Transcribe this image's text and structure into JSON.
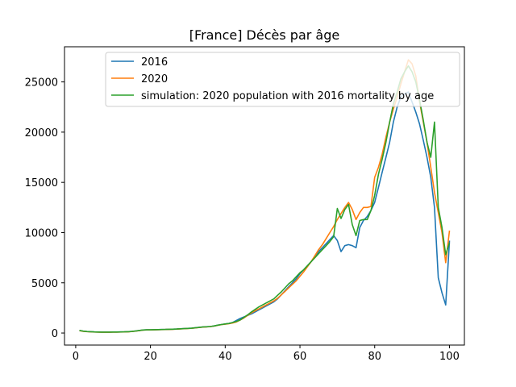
{
  "chart_data": {
    "type": "line",
    "title": "[France] Décès par âge",
    "xlabel": "",
    "ylabel": "",
    "xlim": [
      -3,
      104
    ],
    "ylim": [
      -1200,
      28500
    ],
    "x_ticks": [
      0,
      20,
      40,
      60,
      80,
      100
    ],
    "y_ticks": [
      0,
      5000,
      10000,
      15000,
      20000,
      25000
    ],
    "grid": false,
    "legend_position": "top-right",
    "x": [
      1,
      2,
      3,
      4,
      5,
      6,
      7,
      8,
      9,
      10,
      11,
      12,
      13,
      14,
      15,
      16,
      17,
      18,
      19,
      20,
      21,
      22,
      23,
      24,
      25,
      26,
      27,
      28,
      29,
      30,
      31,
      32,
      33,
      34,
      35,
      36,
      37,
      38,
      39,
      40,
      41,
      42,
      43,
      44,
      45,
      46,
      47,
      48,
      49,
      50,
      51,
      52,
      53,
      54,
      55,
      56,
      57,
      58,
      59,
      60,
      61,
      62,
      63,
      64,
      65,
      66,
      67,
      68,
      69,
      70,
      71,
      72,
      73,
      74,
      75,
      76,
      77,
      78,
      79,
      80,
      81,
      82,
      83,
      84,
      85,
      86,
      87,
      88,
      89,
      90,
      91,
      92,
      93,
      94,
      95,
      96,
      97,
      98,
      99,
      100
    ],
    "series": [
      {
        "name": "2016",
        "color": "#1f77b4",
        "values": [
          250,
          180,
          150,
          130,
          110,
          100,
          90,
          90,
          90,
          100,
          100,
          110,
          120,
          130,
          160,
          200,
          250,
          300,
          320,
          320,
          330,
          340,
          350,
          360,
          370,
          380,
          400,
          420,
          440,
          460,
          480,
          520,
          560,
          600,
          620,
          650,
          700,
          780,
          850,
          900,
          950,
          1050,
          1250,
          1450,
          1600,
          1750,
          1900,
          2100,
          2300,
          2500,
          2700,
          2900,
          3100,
          3400,
          3800,
          4200,
          4600,
          5000,
          5400,
          5900,
          6300,
          6700,
          7100,
          7600,
          8100,
          8500,
          8900,
          9300,
          9700,
          9200,
          8100,
          8700,
          8800,
          8700,
          8500,
          10500,
          11200,
          11600,
          12200,
          13000,
          14500,
          16000,
          17500,
          19000,
          21000,
          22500,
          23500,
          23800,
          24000,
          23000,
          22000,
          20800,
          19200,
          17500,
          15500,
          12500,
          5500,
          4000,
          2800,
          9200
        ]
      },
      {
        "name": "2020",
        "color": "#ff7f0e",
        "values": [
          240,
          170,
          140,
          120,
          100,
          90,
          80,
          80,
          80,
          90,
          90,
          100,
          110,
          120,
          150,
          190,
          240,
          290,
          310,
          310,
          320,
          330,
          340,
          350,
          360,
          370,
          390,
          410,
          430,
          450,
          470,
          510,
          550,
          590,
          610,
          640,
          690,
          770,
          840,
          880,
          930,
          1000,
          1100,
          1300,
          1500,
          1750,
          2000,
          2200,
          2400,
          2600,
          2800,
          3000,
          3200,
          3450,
          3800,
          4150,
          4500,
          4850,
          5200,
          5650,
          6100,
          6600,
          7100,
          7700,
          8300,
          8800,
          9400,
          10000,
          10600,
          11300,
          11900,
          12500,
          13000,
          12300,
          11300,
          12000,
          12500,
          12500,
          12600,
          15500,
          16500,
          17800,
          19500,
          21000,
          22300,
          23500,
          24800,
          26000,
          27200,
          26800,
          25600,
          23000,
          21000,
          19000,
          16500,
          14000,
          12000,
          10000,
          7000,
          10200
        ]
      },
      {
        "name": "simulation: 2020 population with 2016 mortality by age",
        "color": "#2ca02c",
        "values": [
          260,
          190,
          150,
          130,
          110,
          100,
          90,
          90,
          90,
          100,
          100,
          110,
          120,
          130,
          160,
          200,
          250,
          300,
          320,
          320,
          330,
          340,
          350,
          360,
          370,
          380,
          400,
          420,
          440,
          460,
          480,
          520,
          560,
          600,
          620,
          650,
          700,
          780,
          850,
          900,
          950,
          1050,
          1150,
          1300,
          1550,
          1800,
          2100,
          2350,
          2600,
          2800,
          3000,
          3200,
          3400,
          3750,
          4100,
          4500,
          4900,
          5200,
          5600,
          6000,
          6300,
          6700,
          7100,
          7500,
          7900,
          8300,
          8700,
          9100,
          9600,
          12400,
          11400,
          12300,
          12800,
          10800,
          9700,
          11200,
          11300,
          11300,
          12200,
          13700,
          15800,
          17300,
          19000,
          21000,
          22800,
          24000,
          25300,
          26000,
          26600,
          26000,
          25000,
          23200,
          21200,
          19000,
          17500,
          21000,
          12500,
          10500,
          7800,
          9000
        ]
      }
    ]
  }
}
